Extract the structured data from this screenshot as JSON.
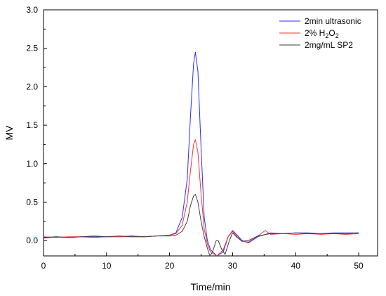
{
  "chart_data": {
    "type": "line",
    "xlabel": "Time/min",
    "ylabel": "MV",
    "xlim": [
      0,
      53
    ],
    "ylim": [
      -0.2,
      3.0
    ],
    "x_ticks": [
      0,
      10,
      20,
      30,
      40,
      50
    ],
    "y_ticks": [
      0.0,
      0.5,
      1.0,
      1.5,
      2.0,
      2.5,
      3.0
    ],
    "x_tick_labels": [
      "0",
      "10",
      "20",
      "30",
      "40",
      "50"
    ],
    "y_tick_labels": [
      "0.0",
      "0.5",
      "1.0",
      "1.5",
      "2.0",
      "2.5",
      "3.0"
    ],
    "grid": false,
    "legend_position": "top-right",
    "series": [
      {
        "name": "2min ultrasonic",
        "color": "#2b2bff",
        "points": [
          [
            0,
            0.03
          ],
          [
            2,
            0.05
          ],
          [
            4,
            0.04
          ],
          [
            6,
            0.05
          ],
          [
            8,
            0.06
          ],
          [
            10,
            0.05
          ],
          [
            12,
            0.05
          ],
          [
            14,
            0.06
          ],
          [
            16,
            0.05
          ],
          [
            18,
            0.06
          ],
          [
            20,
            0.07
          ],
          [
            21,
            0.1
          ],
          [
            22,
            0.3
          ],
          [
            22.8,
            0.8
          ],
          [
            23.3,
            1.6
          ],
          [
            23.8,
            2.3
          ],
          [
            24.1,
            2.45
          ],
          [
            24.5,
            2.2
          ],
          [
            25,
            1.2
          ],
          [
            25.5,
            0.3
          ],
          [
            26,
            0.0
          ],
          [
            26.5,
            -0.12
          ],
          [
            27.5,
            -0.2
          ],
          [
            28.5,
            -0.15
          ],
          [
            29.3,
            0.05
          ],
          [
            30,
            0.13
          ],
          [
            30.6,
            0.08
          ],
          [
            31.5,
            0.0
          ],
          [
            32.5,
            -0.03
          ],
          [
            34,
            0.05
          ],
          [
            36,
            0.1
          ],
          [
            38,
            0.09
          ],
          [
            40,
            0.1
          ],
          [
            42,
            0.1
          ],
          [
            44,
            0.09
          ],
          [
            46,
            0.1
          ],
          [
            48,
            0.1
          ],
          [
            50,
            0.1
          ]
        ]
      },
      {
        "name": "2% H2O2",
        "name_html_parts": [
          "2% H",
          "2",
          "O",
          "2"
        ],
        "color": "#ff3030",
        "points": [
          [
            0,
            0.05
          ],
          [
            2,
            0.04
          ],
          [
            4,
            0.05
          ],
          [
            6,
            0.05
          ],
          [
            8,
            0.04
          ],
          [
            10,
            0.05
          ],
          [
            12,
            0.05
          ],
          [
            14,
            0.05
          ],
          [
            16,
            0.05
          ],
          [
            18,
            0.06
          ],
          [
            20,
            0.07
          ],
          [
            21,
            0.09
          ],
          [
            22,
            0.2
          ],
          [
            22.8,
            0.5
          ],
          [
            23.3,
            0.9
          ],
          [
            23.8,
            1.25
          ],
          [
            24.1,
            1.31
          ],
          [
            24.5,
            1.15
          ],
          [
            25,
            0.6
          ],
          [
            25.5,
            0.15
          ],
          [
            26,
            -0.05
          ],
          [
            26.5,
            -0.15
          ],
          [
            27.5,
            -0.2
          ],
          [
            28.5,
            -0.12
          ],
          [
            29.3,
            0.05
          ],
          [
            30,
            0.12
          ],
          [
            30.6,
            0.06
          ],
          [
            31.5,
            -0.01
          ],
          [
            32.5,
            -0.02
          ],
          [
            34,
            0.06
          ],
          [
            35.2,
            0.13
          ],
          [
            36,
            0.08
          ],
          [
            38,
            0.09
          ],
          [
            40,
            0.08
          ],
          [
            42,
            0.09
          ],
          [
            44,
            0.08
          ],
          [
            46,
            0.09
          ],
          [
            48,
            0.08
          ],
          [
            50,
            0.09
          ]
        ]
      },
      {
        "name": "2mg/mL SP2",
        "color": "#404040",
        "points": [
          [
            0,
            0.04
          ],
          [
            2,
            0.05
          ],
          [
            4,
            0.04
          ],
          [
            6,
            0.05
          ],
          [
            8,
            0.05
          ],
          [
            10,
            0.05
          ],
          [
            12,
            0.06
          ],
          [
            14,
            0.05
          ],
          [
            16,
            0.05
          ],
          [
            18,
            0.06
          ],
          [
            20,
            0.06
          ],
          [
            21,
            0.07
          ],
          [
            22,
            0.12
          ],
          [
            22.8,
            0.25
          ],
          [
            23.3,
            0.45
          ],
          [
            23.8,
            0.58
          ],
          [
            24.1,
            0.6
          ],
          [
            24.5,
            0.5
          ],
          [
            25,
            0.25
          ],
          [
            25.5,
            0.05
          ],
          [
            26,
            -0.1
          ],
          [
            26.4,
            -0.2
          ],
          [
            26.8,
            -0.15
          ],
          [
            27.4,
            0.0
          ],
          [
            27.7,
            0.0
          ],
          [
            28.3,
            -0.12
          ],
          [
            28.8,
            -0.18
          ],
          [
            29.5,
            0.0
          ],
          [
            30,
            0.1
          ],
          [
            30.6,
            0.05
          ],
          [
            31.5,
            -0.01
          ],
          [
            32.5,
            0.0
          ],
          [
            34,
            0.06
          ],
          [
            36,
            0.09
          ],
          [
            38,
            0.09
          ],
          [
            40,
            0.1
          ],
          [
            42,
            0.09
          ],
          [
            44,
            0.09
          ],
          [
            46,
            0.09
          ],
          [
            48,
            0.09
          ],
          [
            50,
            0.1
          ]
        ]
      }
    ]
  }
}
